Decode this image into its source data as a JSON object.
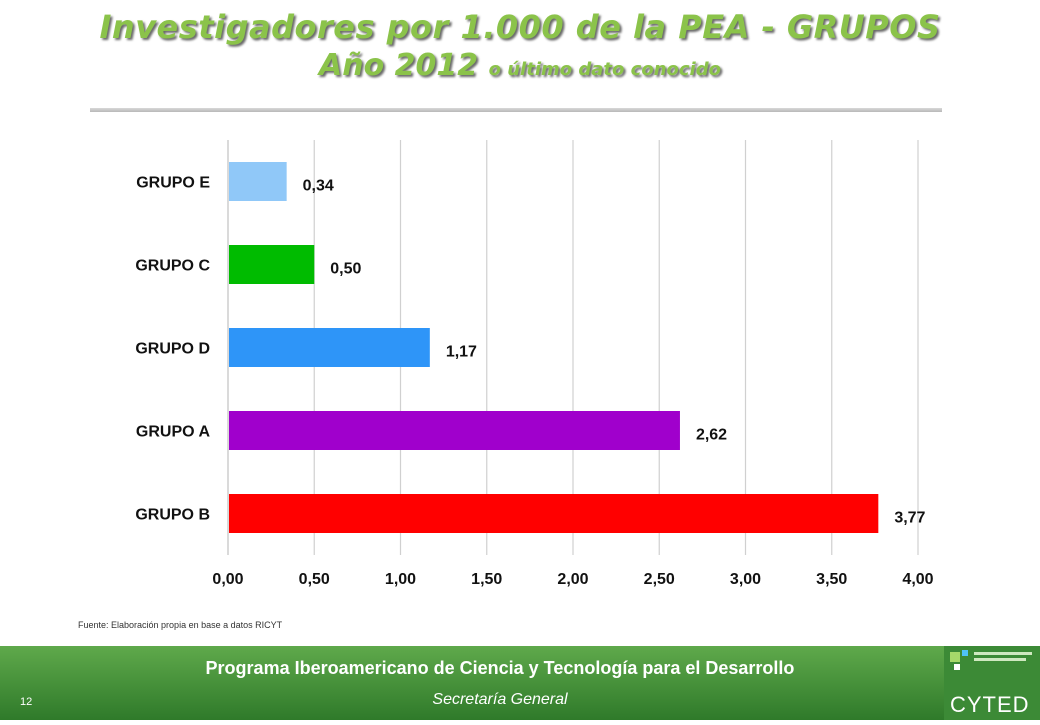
{
  "title": {
    "line1": "Investigadores por 1.000 de la PEA - GRUPOS",
    "line2_main": "Año 2012",
    "line2_small": "o último dato conocido"
  },
  "source_note": "Fuente: Elaboración propia en base a datos RICYT",
  "footer": {
    "title": "Programa Iberoamericano de Ciencia y Tecnología para el Desarrollo",
    "subtitle": "Secretaría General",
    "page_number": "12",
    "logo_text": "CYTED",
    "logo_icon": "cyted-logo-icon"
  },
  "chart_data": {
    "type": "bar",
    "orientation": "horizontal",
    "categories": [
      "GRUPO E",
      "GRUPO C",
      "GRUPO D",
      "GRUPO A",
      "GRUPO B"
    ],
    "values": [
      0.34,
      0.5,
      1.17,
      2.62,
      3.77
    ],
    "value_labels": [
      "0,34",
      "0,50",
      "1,17",
      "2,62",
      "3,77"
    ],
    "colors": [
      "#90C8F8",
      "#00BB00",
      "#2E95F8",
      "#A000CC",
      "#FF0000"
    ],
    "xlim": [
      0,
      4
    ],
    "xticks": [
      0,
      0.5,
      1,
      1.5,
      2,
      2.5,
      3,
      3.5,
      4
    ],
    "xtick_labels": [
      "0,00",
      "0,50",
      "1,00",
      "1,50",
      "2,00",
      "2,50",
      "3,00",
      "3,50",
      "4,00"
    ],
    "grid": true,
    "legend": "none"
  }
}
